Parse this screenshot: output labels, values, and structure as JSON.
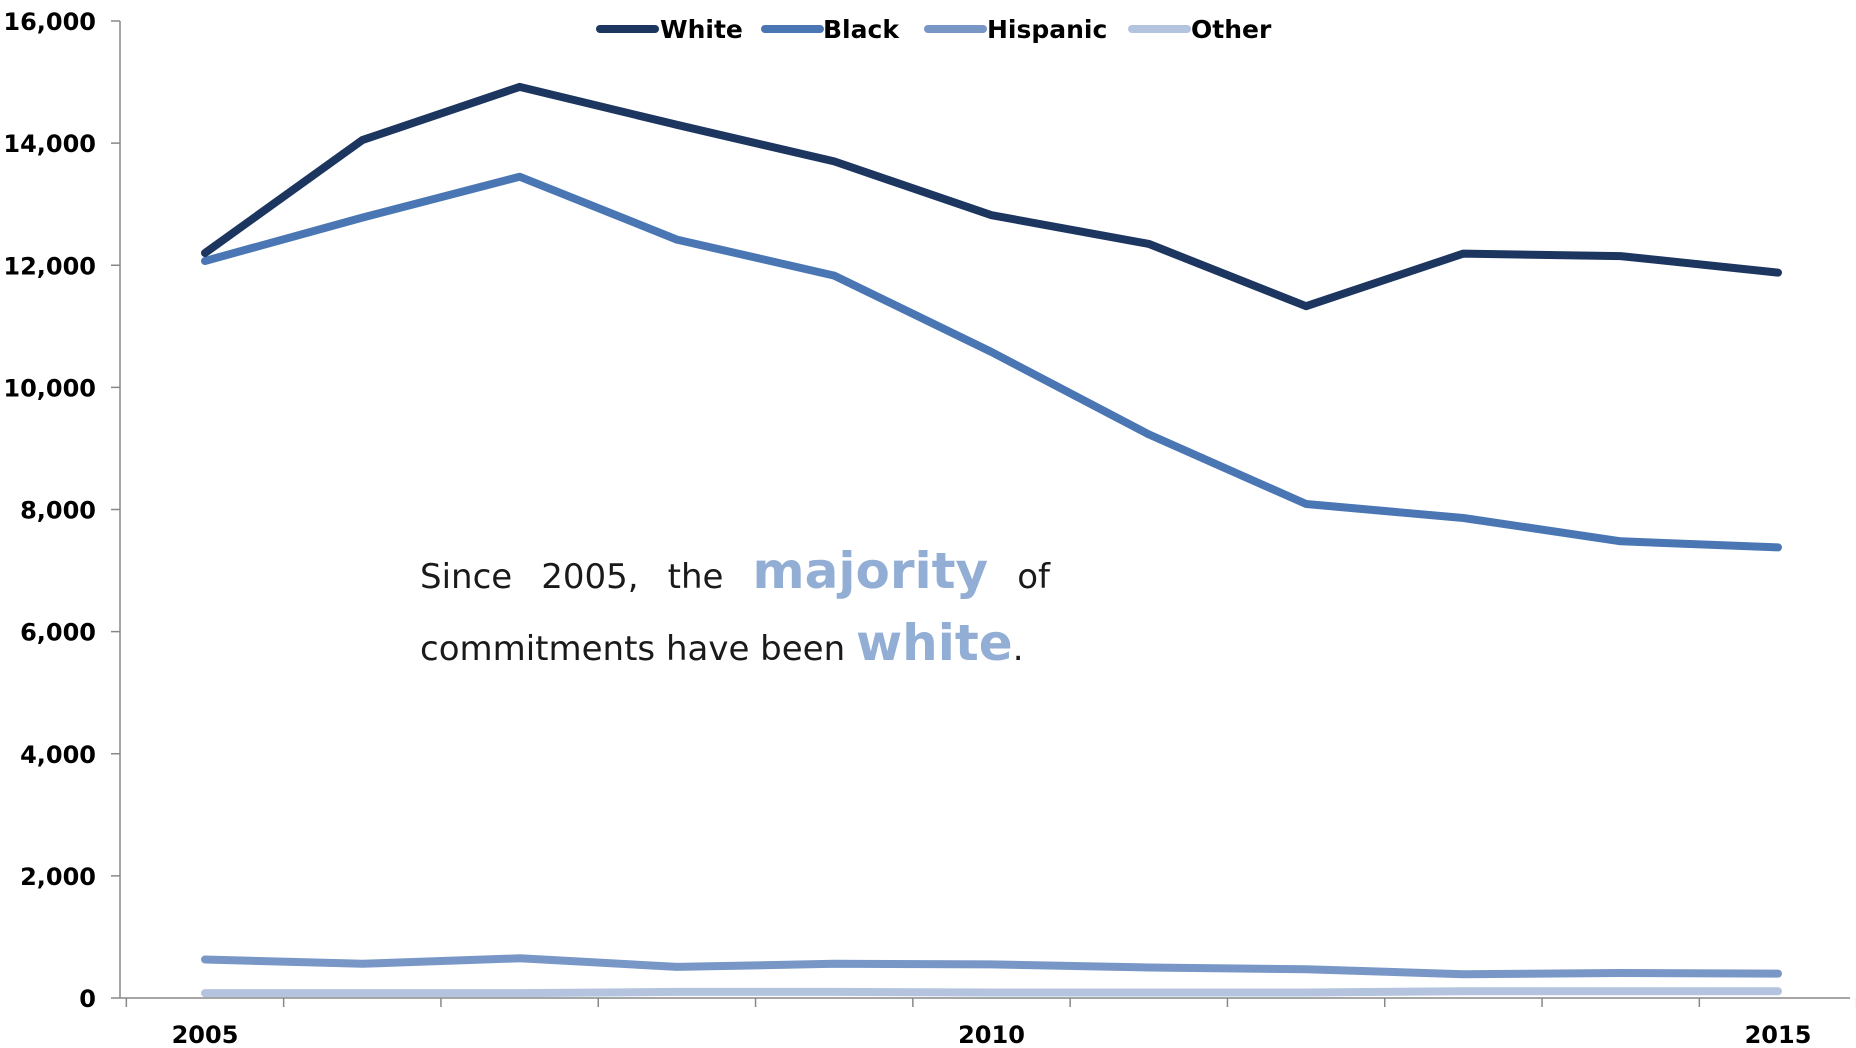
{
  "chart_data": {
    "type": "line",
    "title": "",
    "xlabel": "",
    "ylabel": "",
    "x": [
      2005,
      2006,
      2007,
      2008,
      2009,
      2010,
      2011,
      2012,
      2013,
      2014,
      2015
    ],
    "x_tick_labels": [
      "2005",
      "2010",
      "2015"
    ],
    "ylim": [
      0,
      16000
    ],
    "y_ticks": [
      0,
      2000,
      4000,
      6000,
      8000,
      10000,
      12000,
      14000,
      16000
    ],
    "y_tick_labels": [
      "0",
      "2,000",
      "4,000",
      "6,000",
      "8,000",
      "10,000",
      "12,000",
      "14,000",
      "16,000"
    ],
    "grid": false,
    "legend_position": "top",
    "series": [
      {
        "name": "White",
        "color": "#1c3660",
        "values": [
          12200,
          14050,
          14920,
          14300,
          13700,
          12820,
          12350,
          11330,
          12190,
          12150,
          11880
        ]
      },
      {
        "name": "Black",
        "color": "#4a77b4",
        "values": [
          12070,
          12780,
          13450,
          12420,
          11830,
          10580,
          9230,
          8090,
          7860,
          7480,
          7380
        ]
      },
      {
        "name": "Hispanic",
        "color": "#7896c6",
        "values": [
          630,
          560,
          650,
          510,
          560,
          550,
          500,
          470,
          390,
          410,
          400
        ]
      },
      {
        "name": "Other",
        "color": "#b4c4de",
        "values": [
          80,
          80,
          80,
          100,
          100,
          90,
          90,
          90,
          110,
          110,
          110
        ]
      }
    ]
  },
  "annotation": {
    "part1": "Since 2005, the ",
    "highlight1": "majority",
    "part2": " of commitments have been ",
    "highlight2": "white",
    "part3": "."
  }
}
